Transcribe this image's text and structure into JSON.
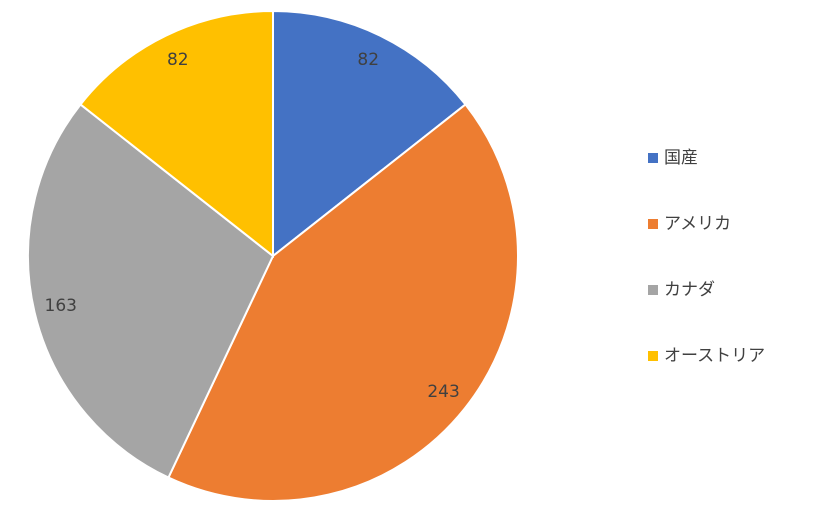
{
  "chart_data": {
    "type": "pie",
    "categories": [
      "国産",
      "アメリカ",
      "カナダ",
      "オーストリア"
    ],
    "values": [
      82,
      243,
      163,
      82
    ],
    "colors": [
      "#4472c4",
      "#ed7d31",
      "#a5a5a5",
      "#ffc000"
    ],
    "legend": "right"
  }
}
